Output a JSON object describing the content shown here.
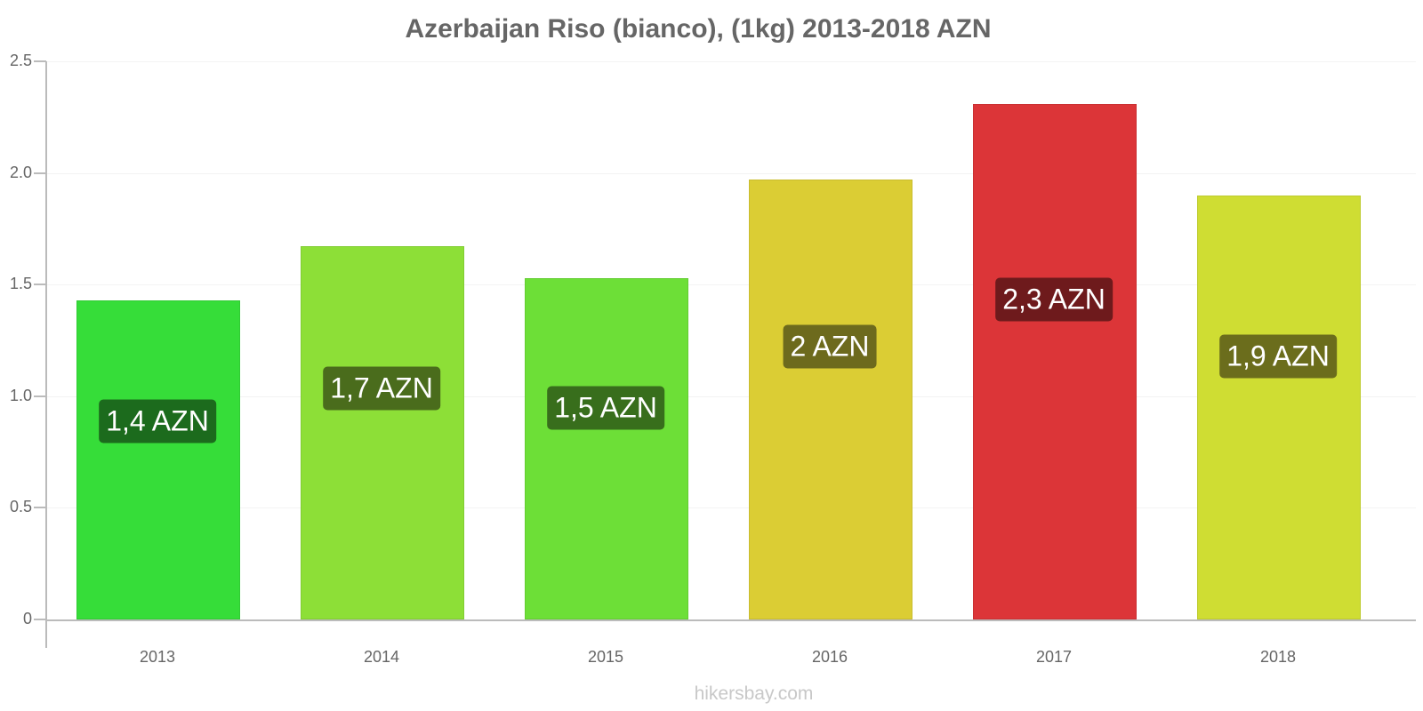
{
  "chart_data": {
    "type": "bar",
    "title": "Azerbaijan Riso (bianco), (1kg) 2013-2018 AZN",
    "xlabel": "",
    "ylabel": "",
    "ylim": [
      0,
      2.5
    ],
    "yticks": [
      "0",
      "0.5",
      "1.0",
      "1.5",
      "2.0",
      "2.5"
    ],
    "categories": [
      "2013",
      "2014",
      "2015",
      "2016",
      "2017",
      "2018"
    ],
    "values": [
      1.43,
      1.67,
      1.53,
      1.97,
      2.31,
      1.9
    ],
    "data_labels": [
      "1,4 AZN",
      "1,7 AZN",
      "1,5 AZN",
      "2 AZN",
      "2,3 AZN",
      "1,9 AZN"
    ],
    "bar_colors": [
      "#36dd39",
      "#8ddf37",
      "#6ddf37",
      "#dbcd34",
      "#dc3538",
      "#cfdd33"
    ],
    "label_colors": [
      "#1c6b1d",
      "#4a6c1c",
      "#386e1c",
      "#6d6a1d",
      "#6e1a1c",
      "#6b6d1c"
    ],
    "grid": true,
    "legend": null
  },
  "watermark": "hikersbay.com"
}
